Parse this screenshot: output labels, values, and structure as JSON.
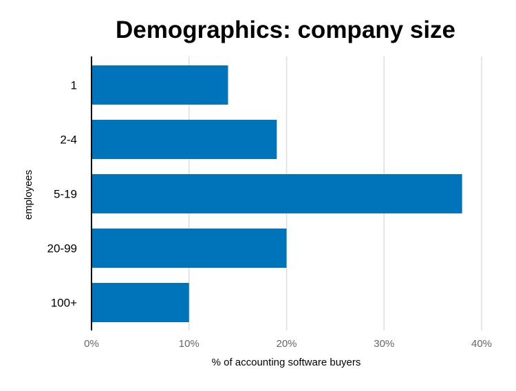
{
  "chart_data": {
    "type": "bar",
    "orientation": "horizontal",
    "title": "Demographics: company size",
    "xlabel": "% of accounting software buyers",
    "ylabel": "employees",
    "categories": [
      "1",
      "2-4",
      "5-19",
      "20-99",
      "100+"
    ],
    "values": [
      14,
      19,
      38,
      20,
      10
    ],
    "xlim": [
      0,
      40
    ],
    "xticks": [
      "0%",
      "10%",
      "20%",
      "30%",
      "40%"
    ],
    "grid": true,
    "bar_color": "#0074BB"
  }
}
